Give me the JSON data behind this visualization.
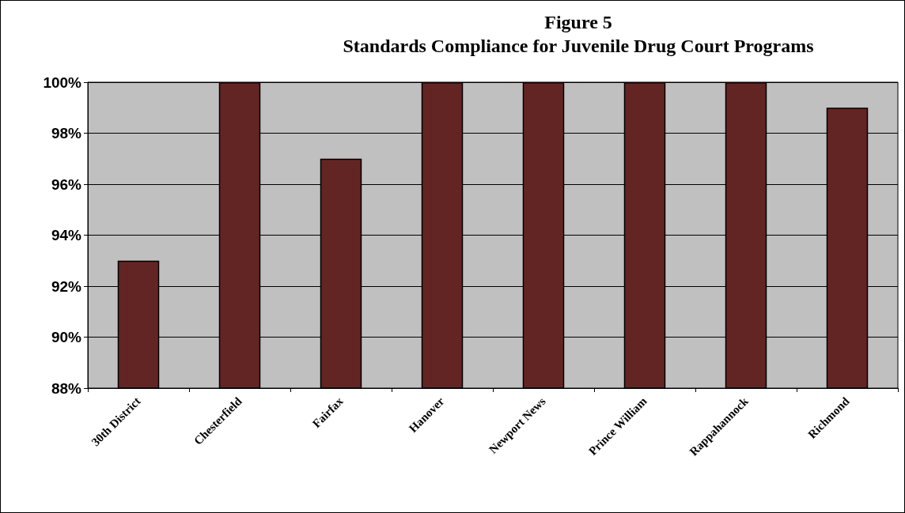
{
  "chart_data": {
    "type": "bar",
    "title": "Figure 5",
    "subtitle": "Standards Compliance for Juvenile Drug Court Programs",
    "categories": [
      "30th District",
      "Chesterfield",
      "Fairfax",
      "Hanover",
      "Newport News",
      "Prince William",
      "Rappahannock",
      "Richmond"
    ],
    "values": [
      93,
      100,
      97,
      100,
      100,
      100,
      100,
      99
    ],
    "color": "#632523",
    "ylim": [
      88,
      100
    ],
    "yticks": [
      {
        "value": 88,
        "label": "88%"
      },
      {
        "value": 90,
        "label": "90%"
      },
      {
        "value": 92,
        "label": "92%"
      },
      {
        "value": 94,
        "label": "94%"
      },
      {
        "value": 96,
        "label": "96%"
      },
      {
        "value": 98,
        "label": "98%"
      },
      {
        "value": 100,
        "label": "100%"
      }
    ],
    "grid": "y"
  }
}
